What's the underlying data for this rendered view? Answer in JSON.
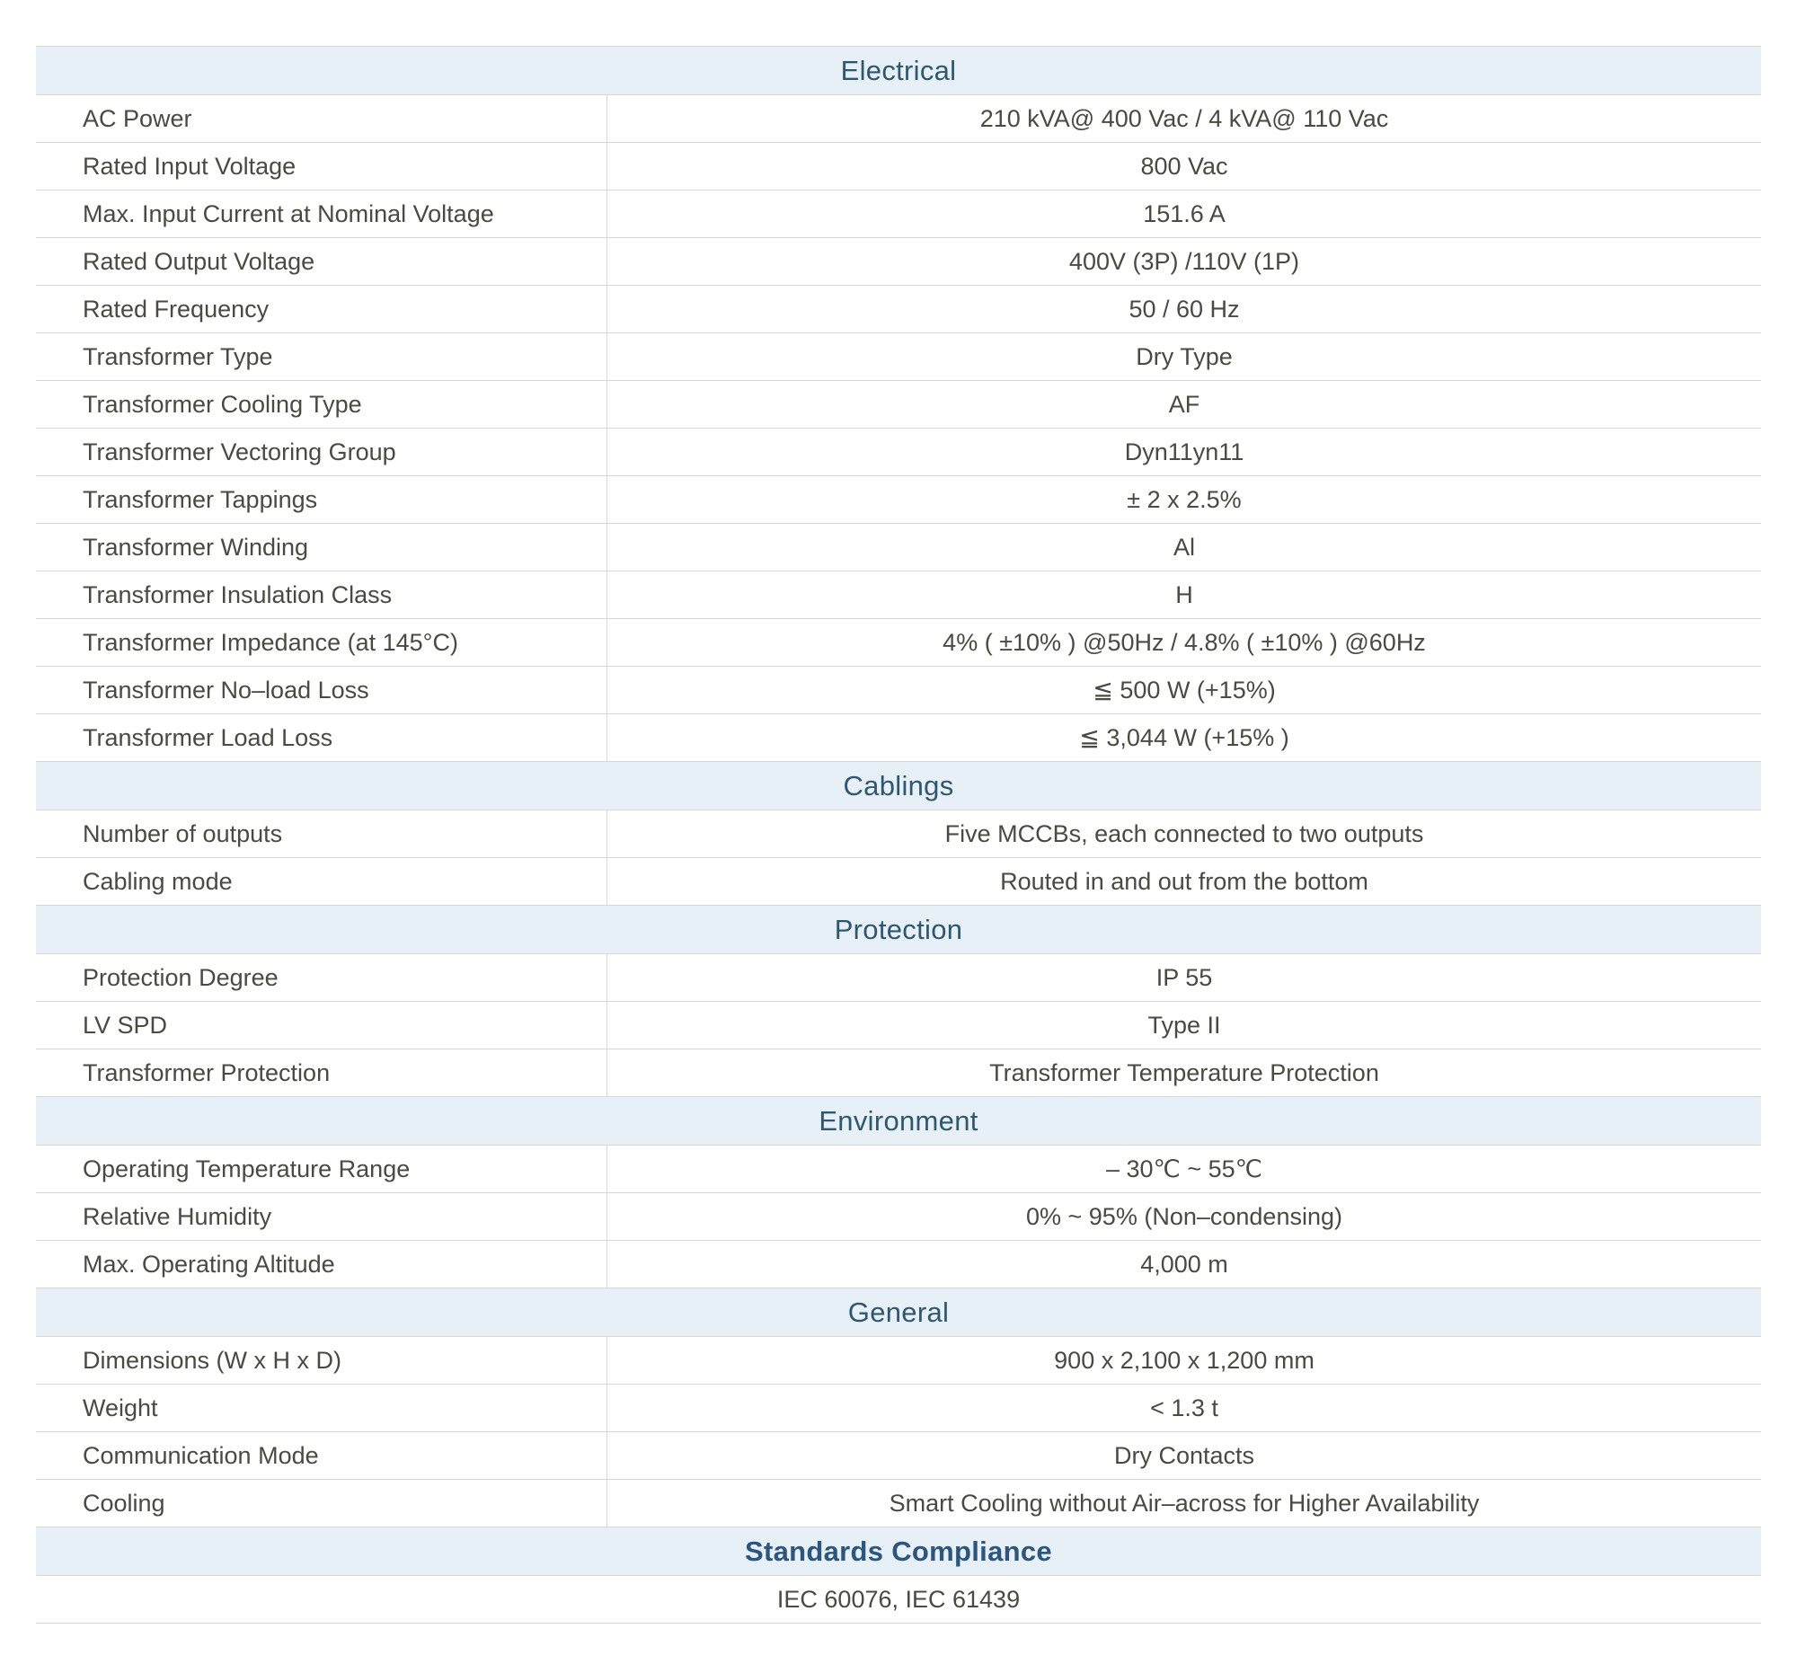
{
  "table": {
    "colors": {
      "header_bg": "#e7eff7",
      "header_text": "#2f5870",
      "standards_text": "#2c567d",
      "body_text": "#4a4a42",
      "border": "#d7d7d7"
    },
    "sections": [
      {
        "title": "Electrical",
        "rows": [
          {
            "label": "AC Power",
            "value": "210 kVA@ 400 Vac / 4 kVA@ 110 Vac"
          },
          {
            "label": "Rated Input Voltage",
            "value": "800 Vac"
          },
          {
            "label": "Max. Input Current at Nominal Voltage",
            "value": "151.6 A"
          },
          {
            "label": "Rated Output Voltage",
            "value": "400V (3P) /110V (1P)"
          },
          {
            "label": "Rated Frequency",
            "value": "50 / 60 Hz"
          },
          {
            "label": "Transformer Type",
            "value": "Dry Type"
          },
          {
            "label": "Transformer Cooling Type",
            "value": "AF"
          },
          {
            "label": "Transformer Vectoring Group",
            "value": "Dyn11yn11"
          },
          {
            "label": "Transformer Tappings",
            "value": "± 2 x 2.5%"
          },
          {
            "label": "Transformer Winding",
            "value": "Al"
          },
          {
            "label": "Transformer Insulation Class",
            "value": "H"
          },
          {
            "label": "Transformer Impedance (at 145°C)",
            "value": "4% ( ±10% ) @50Hz / 4.8% ( ±10% ) @60Hz"
          },
          {
            "label": "Transformer No–load Loss",
            "value": "≦ 500 W (+15%)"
          },
          {
            "label": "Transformer Load Loss",
            "value": "≦ 3,044 W (+15% )"
          }
        ]
      },
      {
        "title": "Cablings",
        "rows": [
          {
            "label": "Number of outputs",
            "value": "Five MCCBs, each connected to two outputs"
          },
          {
            "label": "Cabling mode",
            "value": "Routed in and out from the bottom"
          }
        ]
      },
      {
        "title": "Protection",
        "rows": [
          {
            "label": "Protection Degree",
            "value": "IP 55"
          },
          {
            "label": "LV SPD",
            "value": "Type II"
          },
          {
            "label": "Transformer Protection",
            "value": "Transformer Temperature Protection"
          }
        ]
      },
      {
        "title": "Environment",
        "rows": [
          {
            "label": "Operating Temperature Range",
            "value": "– 30℃ ~ 55℃"
          },
          {
            "label": "Relative Humidity",
            "value": "0% ~ 95% (Non–condensing)"
          },
          {
            "label": "Max. Operating Altitude",
            "value": "4,000 m"
          }
        ]
      },
      {
        "title": "General",
        "rows": [
          {
            "label": "Dimensions (W x H x D)",
            "value": "900 x 2,100 x 1,200 mm"
          },
          {
            "label": "Weight",
            "value": "< 1.3 t"
          },
          {
            "label": "Communication Mode",
            "value": "Dry Contacts"
          },
          {
            "label": "Cooling",
            "value": "Smart Cooling without Air–across for Higher Availability"
          }
        ]
      },
      {
        "title": "Standards Compliance",
        "bold": true,
        "rows": [
          {
            "label": null,
            "value": "IEC 60076, IEC 61439"
          }
        ]
      }
    ]
  }
}
